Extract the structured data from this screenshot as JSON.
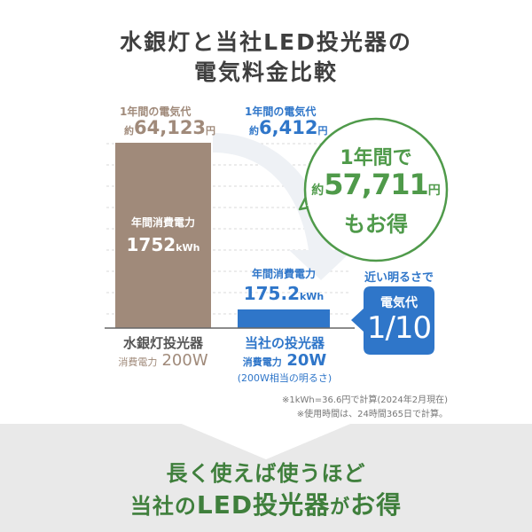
{
  "title": {
    "line1": "水銀灯と当社LED投光器の",
    "line2": "電気料金比較"
  },
  "colors": {
    "mercury": "#a08a7a",
    "led": "#2f76c9",
    "callout": "#4f9a4a",
    "arrow": "#eef1f5"
  },
  "mercury": {
    "cost_label": "1年間の電気代",
    "cost_prefix": "約",
    "cost_value": "64,123",
    "cost_unit": "円",
    "bar_label": "年間消費電力",
    "bar_value": "1752",
    "bar_unit": "kWh",
    "name": "水銀灯投光器",
    "power_label": "消費電力",
    "power_value": "200W"
  },
  "led": {
    "cost_label": "1年間の電気代",
    "cost_prefix": "約",
    "cost_value": "6,412",
    "cost_unit": "円",
    "bar_label": "年間消費電力",
    "bar_value": "175.2",
    "bar_unit": "kWh",
    "name": "当社の投光器",
    "power_label": "消費電力",
    "power_value": "20W",
    "equivalent": "(200W相当の明るさ)"
  },
  "savings": {
    "line1": "1年間で",
    "prefix": "約",
    "amount": "57,711",
    "unit": "円",
    "line3": "もお得"
  },
  "ratio": {
    "header": "近い明るさで",
    "label": "電気代",
    "value": "1/10"
  },
  "notes": [
    "※1kWh=36.6円で計算(2024年2月現在)",
    "※使用時間は、24時間365日で計算。"
  ],
  "footer": {
    "line1": "長く使えば使うほど",
    "line2_pre": "当社の",
    "line2_strong": "LED投光器",
    "line2_mid": "が",
    "line2_end": "お得"
  },
  "chart_data": {
    "type": "bar",
    "categories": [
      "水銀灯投光器",
      "当社の投光器"
    ],
    "series": [
      {
        "name": "年間消費電力",
        "values": [
          1752,
          175.2
        ]
      }
    ],
    "unit": "kWh",
    "annual_cost_yen": [
      64123,
      6412
    ]
  }
}
